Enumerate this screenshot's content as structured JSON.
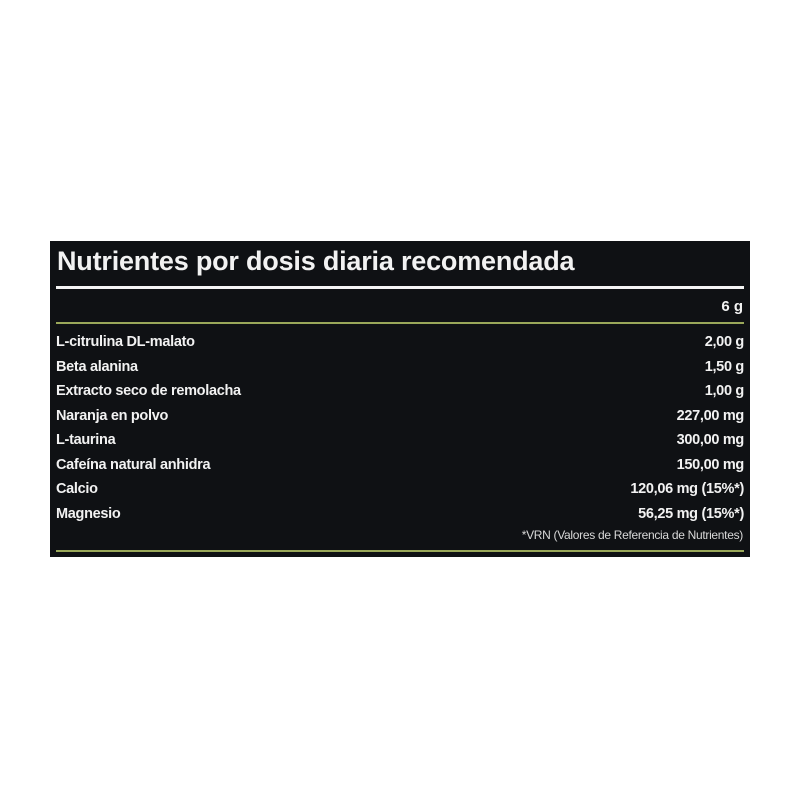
{
  "title": "Nutrientes por dosis diaria recomendada",
  "serving": "6 g",
  "rows": [
    {
      "name": "L-citrulina DL-malato",
      "value": "2,00 g"
    },
    {
      "name": "Beta alanina",
      "value": "1,50 g"
    },
    {
      "name": "Extracto seco de remolacha",
      "value": "1,00 g"
    },
    {
      "name": "Naranja en polvo",
      "value": "227,00 mg"
    },
    {
      "name": "L-taurina",
      "value": "300,00 mg"
    },
    {
      "name": "Cafeína natural anhidra",
      "value": "150,00 mg"
    },
    {
      "name": "Calcio",
      "value": "120,06 mg (15%*)"
    },
    {
      "name": "Magnesio",
      "value": "56,25 mg (15%*)"
    }
  ],
  "footnote": "*VRN (Valores de Referencia de Nutrientes)",
  "colors": {
    "background": "#0f1114",
    "accent_line": "#9aa85a",
    "text": "#f2f2f2"
  }
}
